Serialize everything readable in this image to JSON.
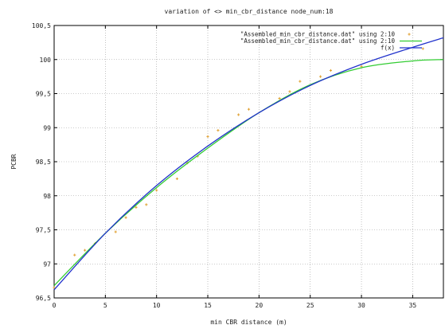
{
  "chart_data": {
    "type": "line",
    "title": "variation of <> min_cbr_distance node_num:18",
    "xlabel": "min CBR distance (m)",
    "ylabel": "PCBR",
    "xlim": [
      0,
      38
    ],
    "ylim": [
      96.5,
      100.5
    ],
    "x_ticks": [
      0,
      5,
      10,
      15,
      20,
      25,
      30,
      35
    ],
    "y_ticks": [
      96.5,
      97,
      97.5,
      98,
      98.5,
      99,
      99.5,
      100,
      100.5
    ],
    "y_tick_labels": [
      "96,5",
      "97",
      "97,5",
      "98",
      "98,5",
      "99",
      "99,5",
      "100",
      "100,5"
    ],
    "grid": true,
    "legend_position": "top-right",
    "series": [
      {
        "name": "\"Assembled_min_cbr_distance.dat\" using 2:10",
        "style": "points",
        "color": "#e0a030",
        "points": [
          {
            "x": 0,
            "y": 96.65
          },
          {
            "x": 2,
            "y": 97.13
          },
          {
            "x": 3,
            "y": 97.2
          },
          {
            "x": 4,
            "y": 97.3
          },
          {
            "x": 6,
            "y": 97.47
          },
          {
            "x": 7,
            "y": 97.68
          },
          {
            "x": 8,
            "y": 97.83
          },
          {
            "x": 9,
            "y": 97.87
          },
          {
            "x": 10,
            "y": 98.08
          },
          {
            "x": 12,
            "y": 98.25
          },
          {
            "x": 13,
            "y": 98.48
          },
          {
            "x": 14,
            "y": 98.58
          },
          {
            "x": 15,
            "y": 98.87
          },
          {
            "x": 16,
            "y": 98.96
          },
          {
            "x": 18,
            "y": 99.19
          },
          {
            "x": 19,
            "y": 99.27
          },
          {
            "x": 22,
            "y": 99.43
          },
          {
            "x": 23,
            "y": 99.53
          },
          {
            "x": 24,
            "y": 99.68
          },
          {
            "x": 26,
            "y": 99.75
          },
          {
            "x": 27,
            "y": 99.84
          },
          {
            "x": 30,
            "y": 99.9
          },
          {
            "x": 36,
            "y": 100.16
          }
        ]
      },
      {
        "name": "\"Assembled_min_cbr_distance.dat\" using 2:10",
        "style": "line",
        "color": "#33cc33",
        "points": [
          {
            "x": 0,
            "y": 96.68
          },
          {
            "x": 5,
            "y": 97.45
          },
          {
            "x": 10,
            "y": 98.12
          },
          {
            "x": 15,
            "y": 98.7
          },
          {
            "x": 20,
            "y": 99.22
          },
          {
            "x": 25,
            "y": 99.63
          },
          {
            "x": 30,
            "y": 99.88
          },
          {
            "x": 35,
            "y": 99.98
          },
          {
            "x": 38,
            "y": 100.0
          }
        ]
      },
      {
        "name": "f(x)",
        "style": "line",
        "color": "#2233cc",
        "points": [
          {
            "x": 0,
            "y": 96.62
          },
          {
            "x": 5,
            "y": 97.45
          },
          {
            "x": 10,
            "y": 98.15
          },
          {
            "x": 15,
            "y": 98.73
          },
          {
            "x": 20,
            "y": 99.22
          },
          {
            "x": 25,
            "y": 99.62
          },
          {
            "x": 30,
            "y": 99.93
          },
          {
            "x": 35,
            "y": 100.18
          },
          {
            "x": 38,
            "y": 100.32
          }
        ]
      }
    ]
  }
}
